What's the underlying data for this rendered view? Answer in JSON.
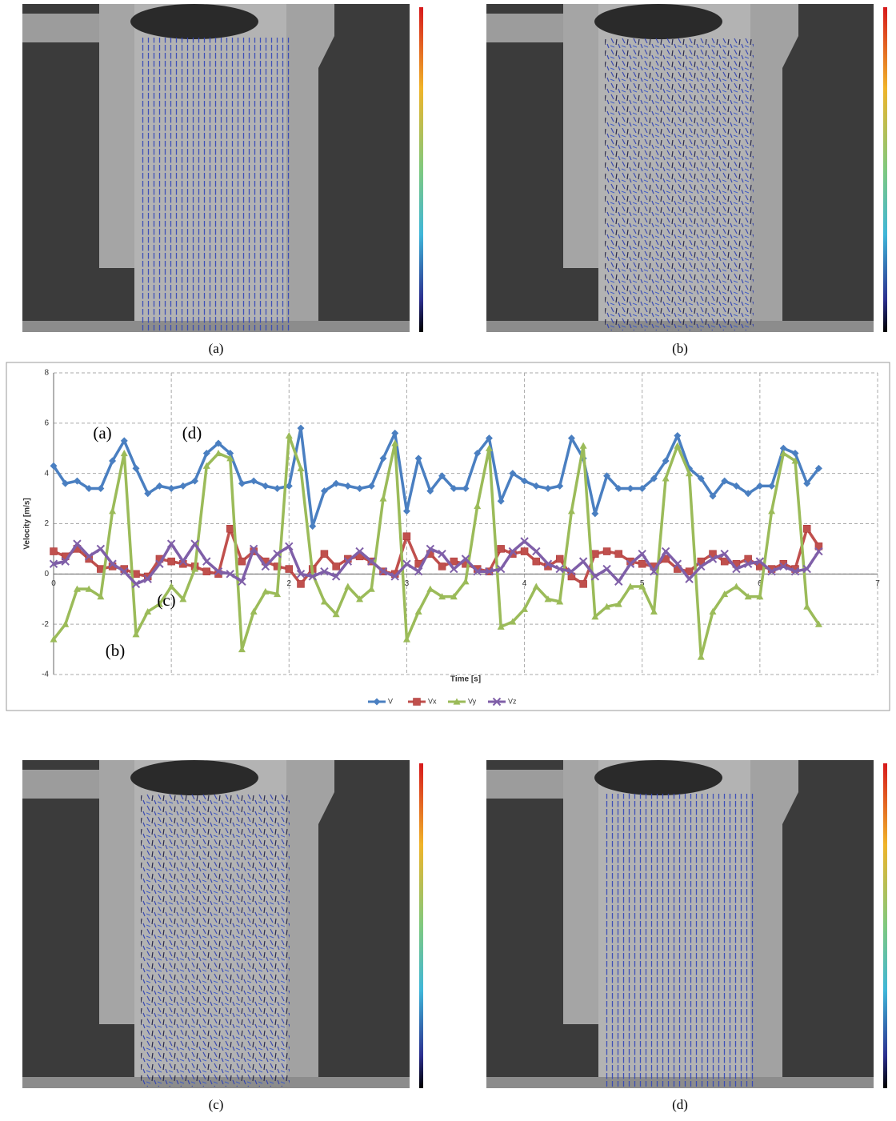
{
  "panels": [
    {
      "caption": "(a)"
    },
    {
      "caption": "(b)"
    },
    {
      "caption": "(c)"
    },
    {
      "caption": "(d)"
    }
  ],
  "chart_data": {
    "type": "line",
    "x_label": "Time [s]",
    "y_label": "Velocity [m/s]",
    "annotations": [
      "(a)",
      "(d)",
      "(c)",
      "(b)"
    ],
    "x": [
      0,
      0.1,
      0.2,
      0.3,
      0.4,
      0.5,
      0.6,
      0.7,
      0.8,
      0.9,
      1.0,
      1.1,
      1.2,
      1.3,
      1.4,
      1.5,
      1.6,
      1.7,
      1.8,
      1.9,
      2.0,
      2.1,
      2.2,
      2.3,
      2.4,
      2.5,
      2.6,
      2.7,
      2.8,
      2.9,
      3.0,
      3.1,
      3.2,
      3.3,
      3.4,
      3.5,
      3.6,
      3.7,
      3.8,
      3.9,
      4.0,
      4.1,
      4.2,
      4.3,
      4.4,
      4.5,
      4.6,
      4.7,
      4.8,
      4.9,
      5.0,
      5.1,
      5.2,
      5.3,
      5.4,
      5.5,
      5.6,
      5.7,
      5.8,
      5.9,
      6.0,
      6.1,
      6.2,
      6.3,
      6.4,
      6.5
    ],
    "series": [
      {
        "name": "V",
        "color": "#4a7fc1",
        "marker": "diamond",
        "values": [
          4.3,
          3.6,
          3.7,
          3.4,
          3.4,
          4.5,
          5.3,
          4.2,
          3.2,
          3.5,
          3.4,
          3.5,
          3.7,
          4.8,
          5.2,
          4.8,
          3.6,
          3.7,
          3.5,
          3.4,
          3.5,
          5.8,
          1.9,
          3.3,
          3.6,
          3.5,
          3.4,
          3.5,
          4.6,
          5.6,
          2.5,
          4.6,
          3.3,
          3.9,
          3.4,
          3.4,
          4.8,
          5.4,
          2.9,
          4.0,
          3.7,
          3.5,
          3.4,
          3.5,
          5.4,
          4.6,
          2.4,
          3.9,
          3.4,
          3.4,
          3.4,
          3.8,
          4.5,
          5.5,
          4.2,
          3.8,
          3.1,
          3.7,
          3.5,
          3.2,
          3.5,
          3.5,
          5.0,
          4.8,
          3.6,
          4.2
        ]
      },
      {
        "name": "Vx",
        "color": "#c0504d",
        "marker": "square",
        "values": [
          0.9,
          0.7,
          1.0,
          0.6,
          0.2,
          0.3,
          0.2,
          0,
          -0.1,
          0.6,
          0.5,
          0.4,
          0.3,
          0.1,
          0,
          1.8,
          0.5,
          0.9,
          0.5,
          0.3,
          0.2,
          -0.4,
          0.2,
          0.8,
          0.3,
          0.6,
          0.7,
          0.5,
          0.1,
          0,
          1.5,
          0.4,
          0.8,
          0.3,
          0.5,
          0.4,
          0.2,
          0.1,
          1.0,
          0.8,
          0.9,
          0.5,
          0.3,
          0.6,
          -0.1,
          -0.4,
          0.8,
          0.9,
          0.8,
          0.5,
          0.4,
          0.3,
          0.6,
          0.2,
          0.1,
          0.5,
          0.8,
          0.5,
          0.4,
          0.6,
          0.3,
          0.2,
          0.4,
          0.2,
          1.8,
          1.1
        ]
      },
      {
        "name": "Vy",
        "color": "#9bbb59",
        "marker": "triangle",
        "values": [
          -2.6,
          -2.0,
          -0.6,
          -0.6,
          -0.9,
          2.5,
          4.8,
          -2.4,
          -1.5,
          -1.2,
          -0.5,
          -1.0,
          0.2,
          4.3,
          4.8,
          4.6,
          -3.0,
          -1.5,
          -0.7,
          -0.8,
          5.5,
          4.2,
          0,
          -1.1,
          -1.6,
          -0.5,
          -1.0,
          -0.6,
          3.0,
          5.2,
          -2.6,
          -1.5,
          -0.6,
          -0.9,
          -0.9,
          -0.3,
          2.7,
          5.0,
          -2.1,
          -1.9,
          -1.4,
          -0.5,
          -1.0,
          -1.1,
          2.5,
          5.1,
          -1.7,
          -1.3,
          -1.2,
          -0.5,
          -0.5,
          -1.5,
          3.8,
          5.1,
          4.0,
          -3.3,
          -1.5,
          -0.8,
          -0.5,
          -0.9,
          -0.9,
          2.5,
          4.8,
          4.5,
          -1.3,
          -2.0
        ]
      },
      {
        "name": "Vz",
        "color": "#7f5fa8",
        "marker": "cross",
        "values": [
          0.4,
          0.5,
          1.2,
          0.7,
          1.0,
          0.4,
          0.1,
          -0.4,
          -0.2,
          0.4,
          1.2,
          0.5,
          1.2,
          0.5,
          0.1,
          0,
          -0.3,
          1.0,
          0.3,
          0.8,
          1.1,
          0,
          -0.1,
          0.1,
          -0.1,
          0.5,
          0.9,
          0.5,
          0.1,
          -0.1,
          0.4,
          0.1,
          1.0,
          0.8,
          0.2,
          0.6,
          0.1,
          0.1,
          0.2,
          0.9,
          1.3,
          0.9,
          0.4,
          0.2,
          0.1,
          0.5,
          -0.1,
          0.2,
          -0.3,
          0.4,
          0.8,
          0.1,
          0.9,
          0.4,
          -0.2,
          0.3,
          0.6,
          0.8,
          0.2,
          0.4,
          0.5,
          0.1,
          0.3,
          0.1,
          0.2,
          0.9
        ]
      }
    ],
    "xlim": [
      0,
      7
    ],
    "xticks": [
      0,
      1,
      2,
      3,
      4,
      5,
      6,
      7
    ],
    "ylim": [
      -4,
      8
    ],
    "yticks": [
      -4,
      -2,
      0,
      2,
      4,
      6,
      8
    ],
    "grid": true,
    "legend": "bottom"
  }
}
